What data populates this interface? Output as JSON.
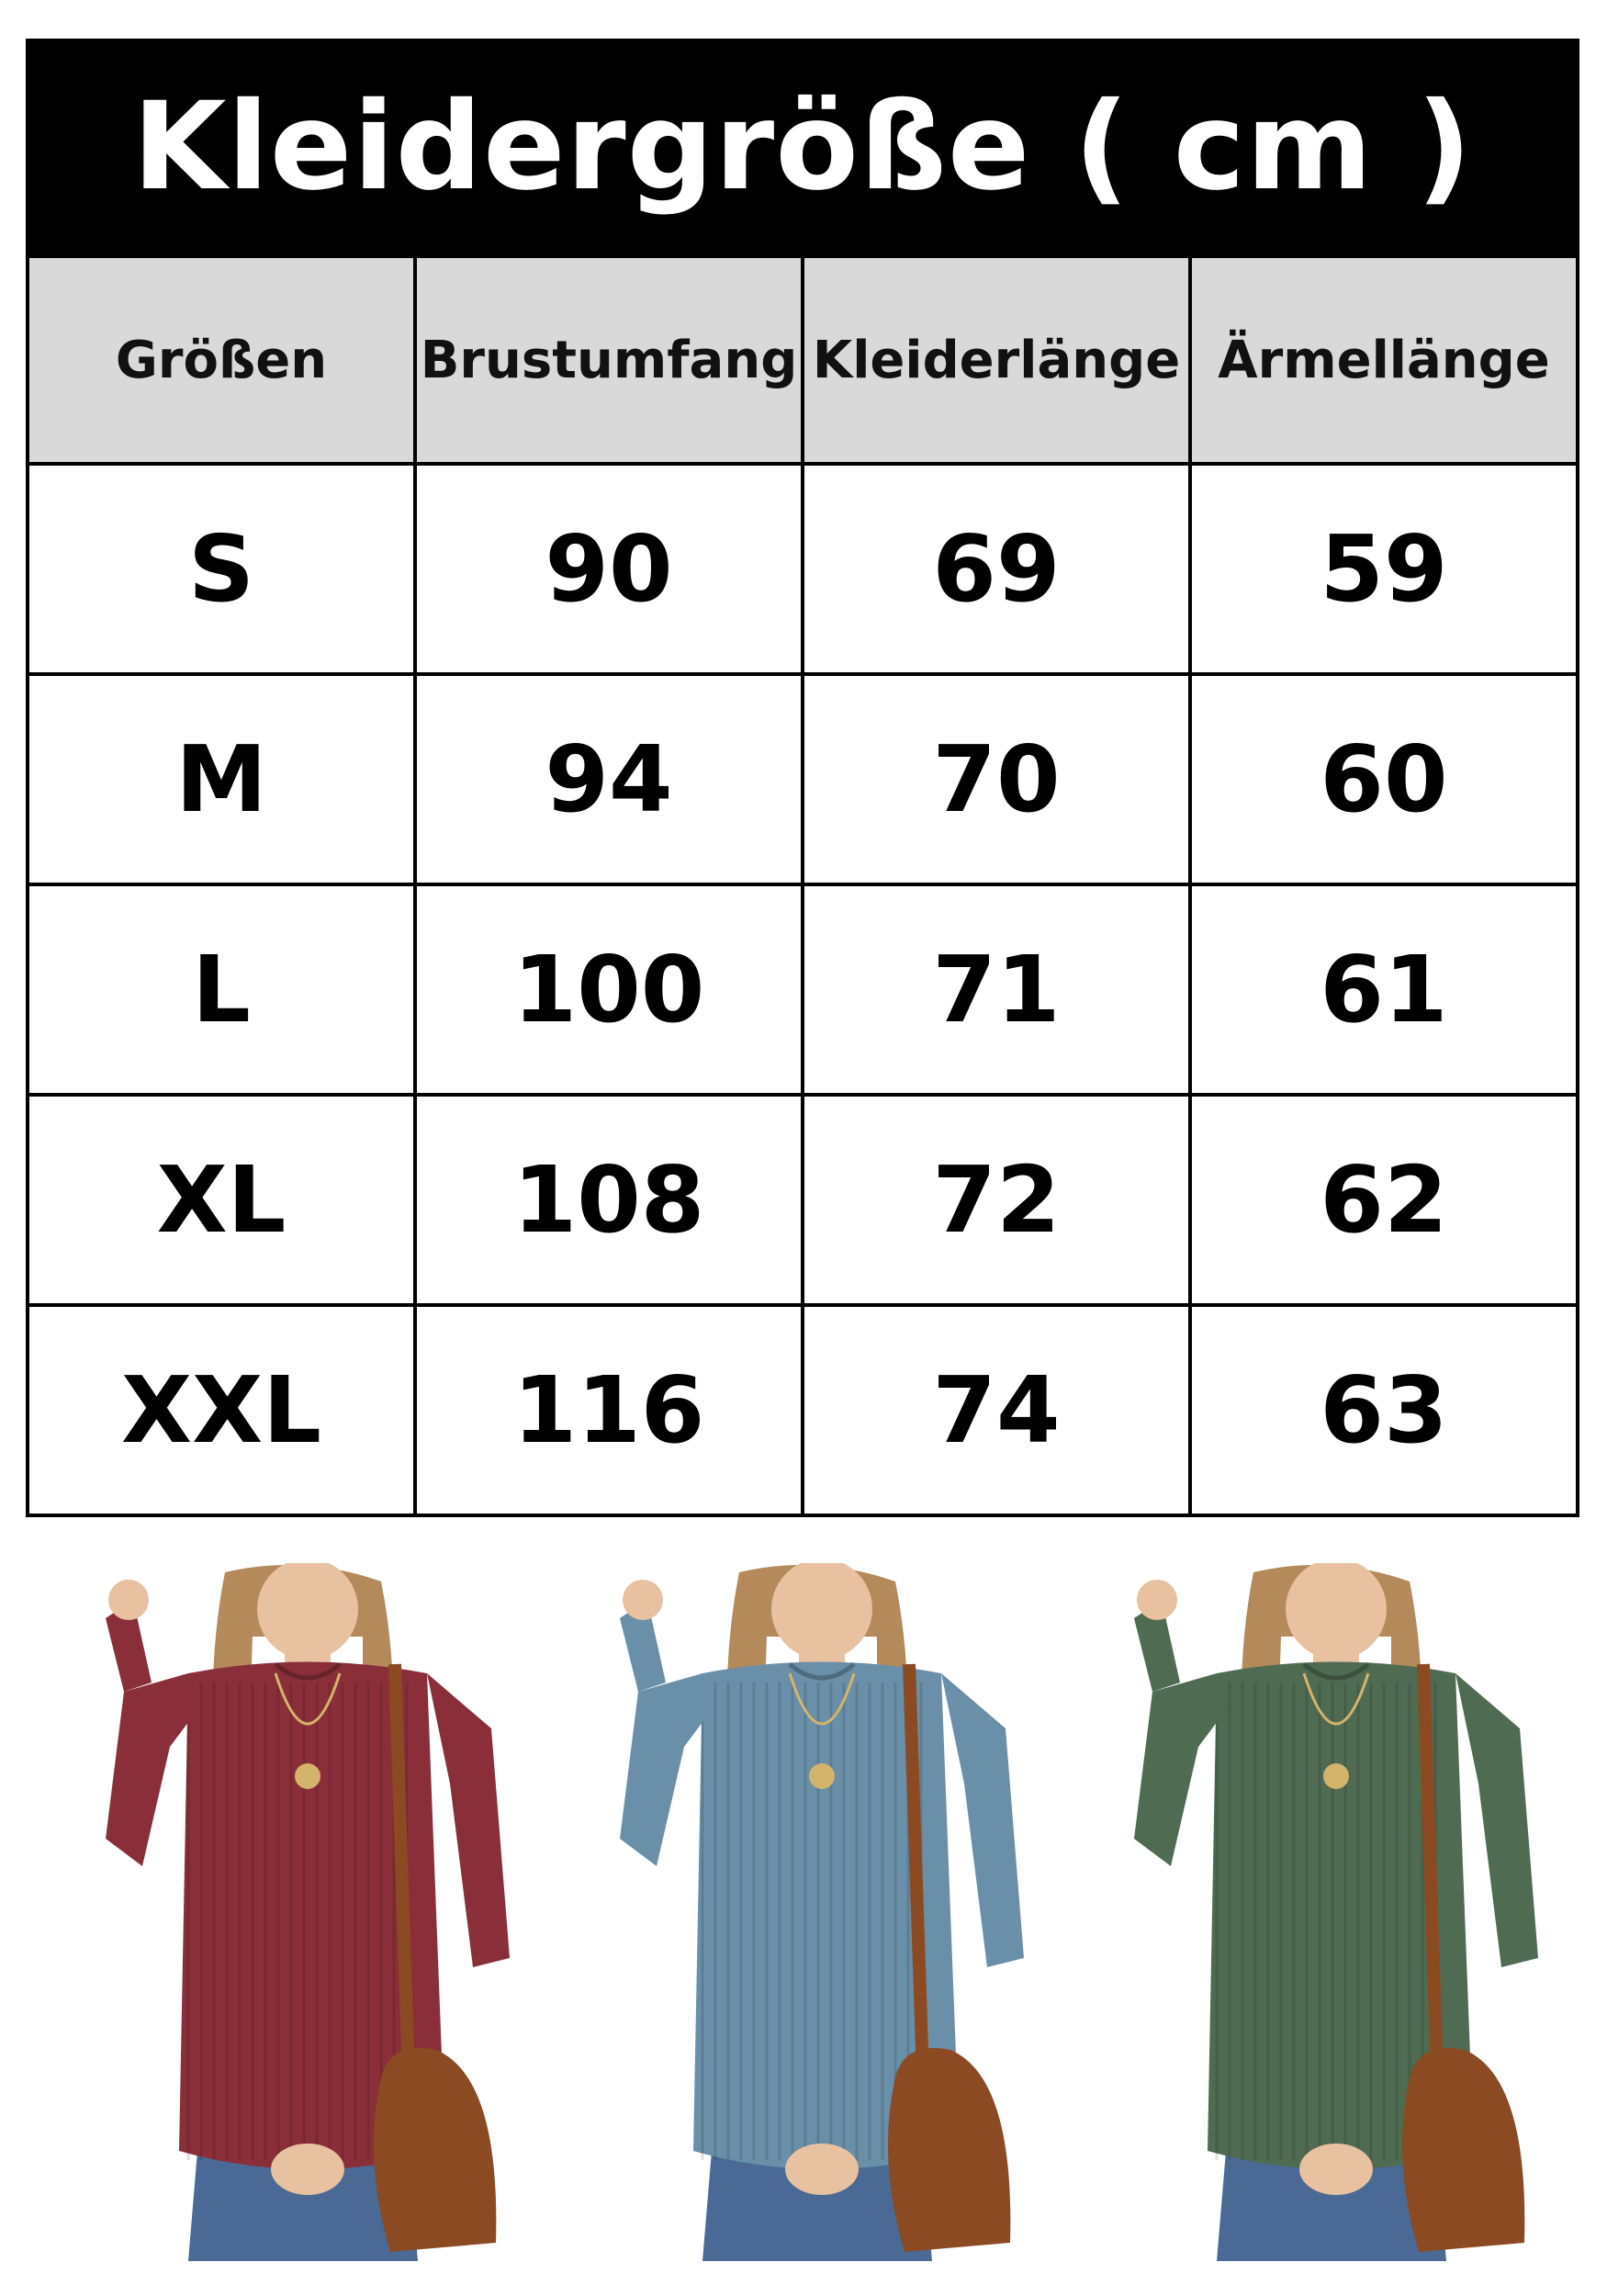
{
  "title": "Kleidergröße ( cm )",
  "headers": [
    "Größen",
    "Brustumfang",
    "Kleiderlänge",
    "Ärmellänge"
  ],
  "rows": [
    [
      "S",
      "90",
      "69",
      "59"
    ],
    [
      "M",
      "94",
      "70",
      "60"
    ],
    [
      "L",
      "100",
      "71",
      "61"
    ],
    [
      "XL",
      "108",
      "72",
      "62"
    ],
    [
      "XXL",
      "116",
      "74",
      "63"
    ]
  ],
  "colors": {
    "header_bg": "#000000",
    "header_text": "#ffffff",
    "column_header_bg": "#d9d9d9",
    "sweater_wine": "#8a2f3a",
    "sweater_blue": "#6a8fa8",
    "sweater_green": "#4f6b52",
    "bag_brown": "#8b4a22"
  },
  "photos": [
    {
      "sweater_color": "#8a2f3a"
    },
    {
      "sweater_color": "#6a8fa8"
    },
    {
      "sweater_color": "#4f6b52"
    }
  ]
}
